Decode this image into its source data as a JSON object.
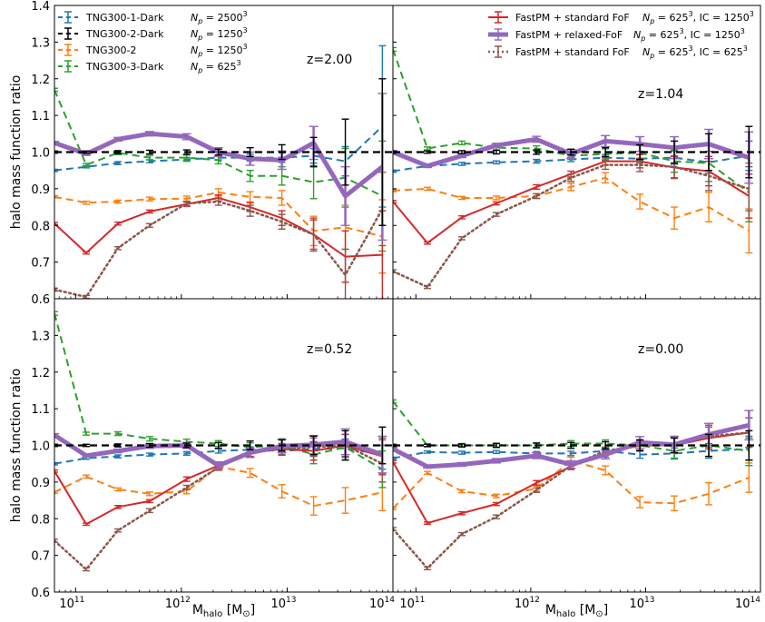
{
  "chart_data": {
    "type": "line",
    "ylabel": "halo mass function ratio",
    "xlabel_main": "M",
    "xlabel_sub": "halo",
    "xlabel_units": "[M",
    "xlabel_sun": "⊙",
    "xlabel_close": "]",
    "ylim": [
      0.6,
      1.4
    ],
    "xlim_log10": [
      10.8,
      14.0
    ],
    "y_ticks": [
      0.6,
      0.7,
      0.8,
      0.9,
      1.0,
      1.1,
      1.2,
      1.3,
      1.4
    ],
    "y_tick_labels": [
      "0.6",
      "0.7",
      "0.8",
      "0.9",
      "1.0",
      "1.1",
      "1.2",
      "1.3",
      "1.4"
    ],
    "x_ticks_log10": [
      11,
      12,
      13,
      14
    ],
    "x_tick_base": "10",
    "x_tick_exps": [
      "11",
      "12",
      "13",
      "14"
    ],
    "x_log10": [
      10.8,
      11.1,
      11.4,
      11.7,
      12.05,
      12.35,
      12.65,
      12.95,
      13.25,
      13.55,
      13.9
    ],
    "legend_left": [
      {
        "name": "TNG300-1-Dark",
        "np_base": "= 2500",
        "np_exp": "3"
      },
      {
        "name": "TNG300-2-Dark",
        "np_base": "= 1250",
        "np_exp": "3"
      },
      {
        "name": "TNG300-2",
        "np_base": "= 1250",
        "np_exp": "3"
      },
      {
        "name": "TNG300-3-Dark",
        "np_base": "= 625",
        "np_exp": "3"
      }
    ],
    "legend_right": [
      {
        "name": "FastPM + standard FoF",
        "np_base": "= 625",
        "np_exp": "3",
        "ic_base": ", IC = 1250",
        "ic_exp": "3"
      },
      {
        "name": "FastPM + relaxed-FoF",
        "np_base": "= 625",
        "np_exp": "3",
        "ic_base": ", IC = 1250",
        "ic_exp": "3"
      },
      {
        "name": "FastPM + standard FoF",
        "np_base": "= 625",
        "np_exp": "3",
        "ic_base": ", IC = 625",
        "ic_exp": "3"
      }
    ],
    "np_symbol": "N",
    "np_sub": "p",
    "series_style": [
      {
        "name": "TNG300-1-Dark",
        "color": "#1f77b4",
        "dash": "dashed",
        "width": 2
      },
      {
        "name": "TNG300-2-Dark",
        "color": "#000000",
        "dash": "dashed",
        "width": 2
      },
      {
        "name": "TNG300-2",
        "color": "#ff7f0e",
        "dash": "dashed",
        "width": 2
      },
      {
        "name": "TNG300-3-Dark",
        "color": "#2ca02c",
        "dash": "dashed",
        "width": 2
      },
      {
        "name": "FastPM + standard FoF (IC 1250^3)",
        "color": "#d62728",
        "dash": "solid",
        "width": 2
      },
      {
        "name": "FastPM + relaxed-FoF",
        "color": "#9467bd",
        "dash": "solid",
        "width": 5
      },
      {
        "name": "FastPM + standard FoF (IC 625^3)",
        "color": "#8c564b",
        "dash": "dotted",
        "width": 2.5
      }
    ],
    "panels": [
      {
        "label": "z=2.00",
        "series": [
          [
            0.95,
            0.96,
            0.97,
            0.975,
            0.98,
            0.985,
            0.985,
            0.985,
            0.99,
            0.975,
            1.07
          ],
          [
            1.0,
            1.0,
            1.0,
            1.0,
            1.0,
            1.0,
            1.0,
            1.0,
            1.0,
            1.0,
            1.0
          ],
          [
            0.878,
            0.862,
            0.865,
            0.872,
            0.873,
            0.89,
            0.878,
            0.875,
            0.785,
            0.795,
            0.77
          ],
          [
            1.17,
            0.965,
            0.998,
            0.985,
            0.985,
            0.978,
            0.935,
            0.935,
            0.918,
            0.93,
            0.88
          ],
          [
            0.805,
            0.725,
            0.805,
            0.838,
            0.858,
            0.875,
            0.85,
            0.82,
            0.775,
            0.715,
            0.72
          ],
          [
            1.025,
            0.995,
            1.035,
            1.05,
            1.042,
            1.0,
            0.982,
            0.978,
            1.025,
            0.88,
            0.96
          ],
          [
            0.625,
            0.605,
            0.738,
            0.8,
            0.86,
            0.865,
            0.84,
            0.81,
            0.775,
            0.665,
            0.845
          ]
        ],
        "errors": [
          [
            0.003,
            0.003,
            0.004,
            0.004,
            0.005,
            0.006,
            0.009,
            0.013,
            0.02,
            0.04,
            0.22
          ],
          [
            0.003,
            0.003,
            0.004,
            0.005,
            0.006,
            0.008,
            0.012,
            0.02,
            0.04,
            0.09,
            0.2
          ],
          [
            0.003,
            0.004,
            0.004,
            0.005,
            0.007,
            0.01,
            0.014,
            0.02,
            0.04,
            0.06,
            0.1
          ],
          [
            0.004,
            0.004,
            0.005,
            0.006,
            0.007,
            0.01,
            0.015,
            0.025,
            0.045,
            0.08,
            0.15
          ],
          [
            0.003,
            0.003,
            0.004,
            0.004,
            0.006,
            0.008,
            0.012,
            0.02,
            0.04,
            0.07,
            0.12
          ],
          [
            0.004,
            0.004,
            0.005,
            0.006,
            0.008,
            0.012,
            0.018,
            0.025,
            0.045,
            0.08,
            0.2
          ],
          [
            0.004,
            0.004,
            0.004,
            0.005,
            0.006,
            0.01,
            0.015,
            0.02,
            0.045,
            0.07,
            0.1
          ]
        ]
      },
      {
        "label": "z=1.04",
        "series": [
          [
            0.948,
            0.962,
            0.968,
            0.972,
            0.975,
            0.98,
            0.985,
            0.982,
            0.985,
            0.972,
            0.99
          ],
          [
            1.0,
            1.0,
            1.0,
            1.0,
            1.0,
            1.0,
            1.0,
            1.0,
            1.0,
            1.0,
            1.0
          ],
          [
            0.895,
            0.9,
            0.875,
            0.875,
            0.88,
            0.905,
            0.93,
            0.865,
            0.82,
            0.85,
            0.785
          ],
          [
            1.28,
            1.01,
            1.025,
            1.012,
            1.01,
            0.99,
            0.995,
            0.998,
            0.975,
            0.97,
            0.89
          ],
          [
            0.865,
            0.752,
            0.822,
            0.86,
            0.905,
            0.94,
            0.975,
            0.975,
            0.958,
            0.948,
            0.88
          ],
          [
            1.0,
            0.962,
            0.99,
            1.018,
            1.035,
            0.995,
            1.03,
            1.022,
            1.012,
            1.022,
            0.985
          ],
          [
            0.675,
            0.632,
            0.765,
            0.83,
            0.88,
            0.93,
            0.965,
            0.965,
            0.96,
            0.935,
            0.9
          ]
        ],
        "errors": [
          [
            0.003,
            0.003,
            0.004,
            0.004,
            0.005,
            0.006,
            0.008,
            0.012,
            0.018,
            0.03,
            0.04
          ],
          [
            0.003,
            0.003,
            0.004,
            0.005,
            0.006,
            0.008,
            0.012,
            0.02,
            0.03,
            0.05,
            0.07
          ],
          [
            0.003,
            0.004,
            0.004,
            0.005,
            0.007,
            0.01,
            0.014,
            0.02,
            0.03,
            0.04,
            0.06
          ],
          [
            0.005,
            0.004,
            0.005,
            0.006,
            0.007,
            0.01,
            0.014,
            0.02,
            0.03,
            0.05,
            0.08
          ],
          [
            0.003,
            0.003,
            0.004,
            0.004,
            0.006,
            0.008,
            0.01,
            0.018,
            0.03,
            0.04,
            0.06
          ],
          [
            0.004,
            0.004,
            0.005,
            0.006,
            0.008,
            0.012,
            0.015,
            0.02,
            0.03,
            0.04,
            0.07
          ],
          [
            0.004,
            0.004,
            0.004,
            0.005,
            0.006,
            0.01,
            0.012,
            0.018,
            0.03,
            0.04,
            0.06
          ]
        ]
      },
      {
        "label": "z=0.52",
        "series": [
          [
            0.95,
            0.965,
            0.97,
            0.975,
            0.978,
            0.985,
            0.988,
            0.985,
            0.99,
            0.992,
            0.975
          ],
          [
            1.0,
            1.0,
            1.0,
            1.0,
            1.0,
            1.0,
            1.0,
            1.0,
            1.0,
            1.0,
            1.0
          ],
          [
            0.872,
            0.915,
            0.88,
            0.868,
            0.875,
            0.942,
            0.925,
            0.875,
            0.835,
            0.85,
            0.872
          ],
          [
            1.36,
            1.032,
            1.032,
            1.018,
            1.01,
            1.005,
            0.995,
            1.0,
            0.975,
            0.995,
            0.935
          ],
          [
            0.93,
            0.785,
            0.832,
            0.848,
            0.908,
            0.945,
            0.98,
            0.99,
            0.985,
            1.0,
            0.97
          ],
          [
            1.028,
            0.972,
            0.985,
            0.998,
            1.0,
            0.945,
            0.98,
            0.998,
            1.002,
            1.01,
            0.975
          ],
          [
            0.74,
            0.662,
            0.768,
            0.822,
            0.885,
            0.94,
            0.98,
            0.99,
            0.995,
            1.0,
            0.95
          ]
        ],
        "errors": [
          [
            0.003,
            0.003,
            0.004,
            0.004,
            0.005,
            0.006,
            0.008,
            0.012,
            0.018,
            0.025,
            0.04
          ],
          [
            0.003,
            0.003,
            0.004,
            0.005,
            0.006,
            0.008,
            0.012,
            0.015,
            0.025,
            0.04,
            0.05
          ],
          [
            0.003,
            0.004,
            0.004,
            0.005,
            0.007,
            0.01,
            0.012,
            0.018,
            0.025,
            0.035,
            0.05
          ],
          [
            0.005,
            0.004,
            0.005,
            0.006,
            0.007,
            0.008,
            0.012,
            0.018,
            0.025,
            0.035,
            0.05
          ],
          [
            0.003,
            0.003,
            0.004,
            0.004,
            0.006,
            0.008,
            0.01,
            0.015,
            0.025,
            0.03,
            0.05
          ],
          [
            0.004,
            0.004,
            0.005,
            0.006,
            0.008,
            0.01,
            0.013,
            0.018,
            0.025,
            0.035,
            0.05
          ],
          [
            0.004,
            0.004,
            0.004,
            0.005,
            0.006,
            0.008,
            0.012,
            0.015,
            0.025,
            0.03,
            0.05
          ]
        ]
      },
      {
        "label": "z=0.00",
        "series": [
          [
            0.965,
            0.982,
            0.98,
            0.982,
            0.978,
            0.978,
            0.985,
            0.975,
            0.978,
            0.985,
            0.99
          ],
          [
            1.0,
            1.0,
            1.0,
            1.0,
            1.0,
            1.0,
            1.0,
            1.0,
            1.0,
            1.0,
            1.0
          ],
          [
            0.828,
            0.925,
            0.875,
            0.862,
            0.882,
            0.958,
            0.932,
            0.845,
            0.842,
            0.868,
            0.912
          ],
          [
            1.12,
            1.0,
            1.0,
            1.0,
            1.0,
            1.005,
            1.005,
            1.0,
            0.985,
            1.0,
            0.985
          ],
          [
            0.955,
            0.788,
            0.815,
            0.84,
            0.898,
            0.942,
            0.978,
            1.0,
            1.0,
            1.02,
            1.035
          ],
          [
            0.99,
            0.942,
            0.948,
            0.958,
            0.972,
            0.948,
            0.975,
            1.008,
            1.002,
            1.03,
            1.055
          ],
          [
            0.772,
            0.665,
            0.758,
            0.805,
            0.878,
            0.945,
            0.985,
            1.0,
            1.005,
            1.025,
            1.035
          ]
        ],
        "errors": [
          [
            0.003,
            0.003,
            0.004,
            0.004,
            0.005,
            0.006,
            0.008,
            0.01,
            0.015,
            0.02,
            0.03
          ],
          [
            0.003,
            0.003,
            0.004,
            0.005,
            0.006,
            0.008,
            0.01,
            0.015,
            0.02,
            0.03,
            0.04
          ],
          [
            0.003,
            0.004,
            0.004,
            0.005,
            0.007,
            0.01,
            0.012,
            0.015,
            0.02,
            0.03,
            0.04
          ],
          [
            0.004,
            0.004,
            0.005,
            0.006,
            0.007,
            0.008,
            0.01,
            0.015,
            0.02,
            0.03,
            0.04
          ],
          [
            0.003,
            0.003,
            0.004,
            0.004,
            0.006,
            0.008,
            0.01,
            0.013,
            0.02,
            0.03,
            0.04
          ],
          [
            0.004,
            0.004,
            0.005,
            0.006,
            0.008,
            0.01,
            0.012,
            0.016,
            0.022,
            0.03,
            0.04
          ],
          [
            0.004,
            0.004,
            0.004,
            0.005,
            0.006,
            0.008,
            0.01,
            0.013,
            0.02,
            0.03,
            0.04
          ]
        ]
      }
    ]
  }
}
